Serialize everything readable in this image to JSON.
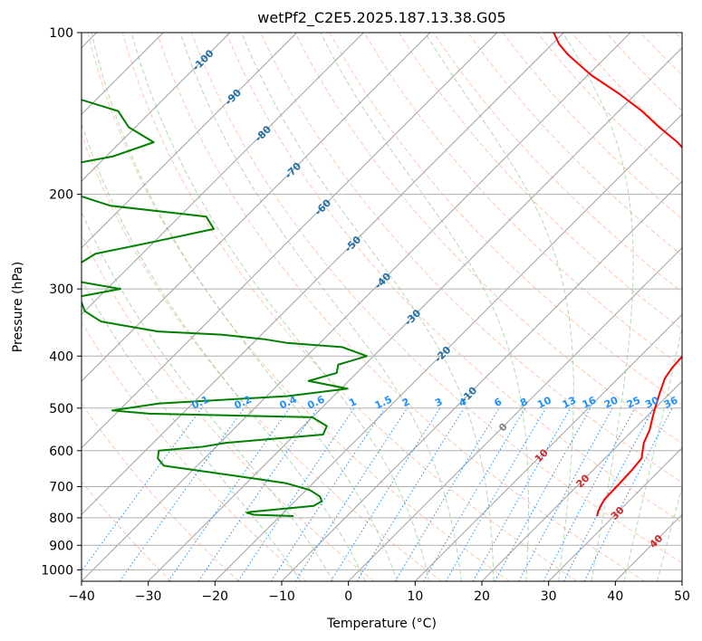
{
  "chart_data": {
    "type": "line",
    "title": "wetPf2_C2E5.2025.187.13.38.G05",
    "xlabel": "Temperature (°C)",
    "ylabel": "Pressure (hPa)",
    "xlim": [
      -40,
      50
    ],
    "ylim": [
      1050,
      100
    ],
    "y_scale": "log",
    "x_ticks": [
      -40,
      -30,
      -20,
      -10,
      0,
      10,
      20,
      30,
      40,
      50
    ],
    "y_ticks": [
      100,
      200,
      300,
      400,
      500,
      600,
      700,
      800,
      900,
      1000
    ],
    "grid": true,
    "colors": {
      "temperature": "#ff0000",
      "dewpoint": "#008000",
      "isotherm": "#a0a0a0",
      "dry_adiabat": "#ffa07a",
      "moist_adiabat": "#90c890",
      "mixing_ratio": "#1e90ff",
      "isotherm_label": "#1f6fa8",
      "frame": "#000000"
    },
    "isotherm_labels": [
      "-100",
      "-90",
      "-80",
      "-70",
      "-60",
      "-50",
      "-40",
      "-30",
      "-20",
      "-10",
      "0",
      "10",
      "20",
      "30",
      "40"
    ],
    "mixing_ratio_labels": [
      "0.1",
      "0.2",
      "0.4",
      "0.6",
      "1",
      "1.5",
      "2",
      "3",
      "4",
      "6",
      "8",
      "10",
      "13",
      "16",
      "20",
      "25",
      "30",
      "36"
    ],
    "series": [
      {
        "key": "temperature",
        "pressure": [
          794,
          780,
          760,
          740,
          700,
          650,
          620,
          580,
          550,
          520,
          500,
          470,
          440,
          420,
          400,
          380,
          370,
          350,
          330,
          300,
          270,
          250,
          230,
          210,
          200,
          190,
          180,
          170,
          160,
          150,
          140,
          130,
          120,
          110,
          105,
          100
        ],
        "values": [
          27.5,
          27,
          26.5,
          26.1,
          26,
          25.8,
          25.5,
          23.5,
          22.5,
          21,
          20,
          18.5,
          17,
          16.5,
          16.3,
          16,
          15.7,
          14.8,
          13.5,
          10.5,
          7.5,
          5,
          2.2,
          -1.5,
          -3.4,
          -6,
          -9,
          -12.5,
          -16.5,
          -21.5,
          -26.5,
          -32.5,
          -39.5,
          -46,
          -49,
          -51.5
        ]
      },
      {
        "key": "dewpoint",
        "pressure": [
          794,
          790,
          783,
          780,
          760,
          745,
          730,
          710,
          690,
          670,
          640,
          620,
          600,
          590,
          580,
          560,
          540,
          520,
          512,
          505,
          490,
          475,
          460,
          445,
          430,
          415,
          400,
          385,
          378,
          372,
          365,
          360,
          345,
          330,
          310,
          300,
          290,
          280,
          270,
          258,
          245,
          232,
          220,
          210,
          200,
          190,
          178,
          170,
          160,
          150,
          140,
          130,
          120,
          112,
          106,
          100
        ],
        "values": [
          -18,
          -24,
          -25.5,
          -25,
          -16.5,
          -16,
          -17,
          -19.5,
          -24,
          -32,
          -45,
          -47,
          -48,
          -42,
          -39,
          -25.8,
          -26.5,
          -30,
          -55,
          -61,
          -55,
          -37,
          -29,
          -36,
          -33,
          -34,
          -31,
          -36,
          -45,
          -49,
          -56,
          -66,
          -76,
          -80,
          -83,
          -78,
          -86,
          -90,
          -88,
          -87,
          -80,
          -73,
          -76,
          -92,
          -99,
          -108,
          -106,
          -99,
          -95,
          -101,
          -105,
          -116,
          -126,
          -127,
          -128,
          -130
        ]
      }
    ]
  }
}
